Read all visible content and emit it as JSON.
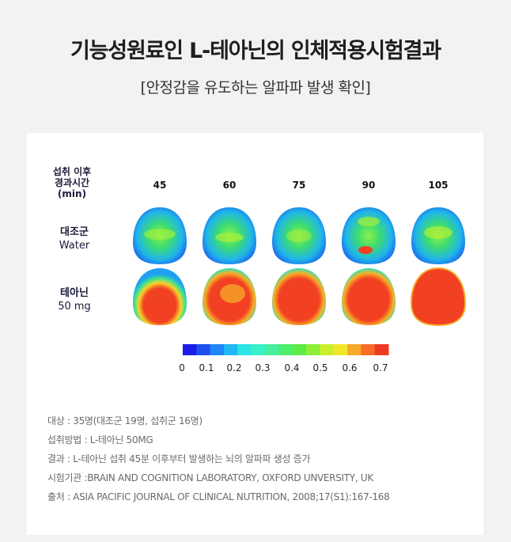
{
  "title": "기능성원료인 L-테아닌의 인체적용시험결과",
  "subtitle": "[안정감을 유도하는 알파파 발생 확인]",
  "figure": {
    "axis_label_lines": [
      "섭취 이후",
      "경과시간",
      "(min)"
    ],
    "time_points": [
      "45",
      "60",
      "75",
      "90",
      "105"
    ],
    "rows": [
      {
        "label_lines": [
          "대조군",
          "Water"
        ],
        "group": "control"
      },
      {
        "label_lines": [
          "테아닌",
          "50 mg"
        ],
        "group": "theanine"
      }
    ],
    "colorbar": {
      "colors": [
        "#1c1ee8",
        "#1e4ff0",
        "#1f88f5",
        "#20b8f5",
        "#2ce6e6",
        "#3af0c8",
        "#46ee9e",
        "#4ded6e",
        "#5cec47",
        "#8eee38",
        "#c8ef2c",
        "#f1e62a",
        "#f6a92a",
        "#f76c28",
        "#ef3a23"
      ],
      "tick_labels": [
        "0",
        "0.1",
        "0.2",
        "0.3",
        "0.4",
        "0.5",
        "0.6",
        "0.7"
      ]
    }
  },
  "notes": [
    "대상 : 35명(대조군 19명, 섭취군 16명)",
    "섭취방법 : L-테아닌 50MG",
    "결과 : L-테아닌 섭취 45분 이후부터 발생하는 뇌의 알파파 생성 증가",
    "시험기관 :BRAIN AND COGNITION LABORATORY, OXFORD UNVERSITY, UK",
    "출처 : ASIA PACIFIC JOURNAL OF CLINICAL NUTRITION, 2008;17(S1):167-168"
  ]
}
